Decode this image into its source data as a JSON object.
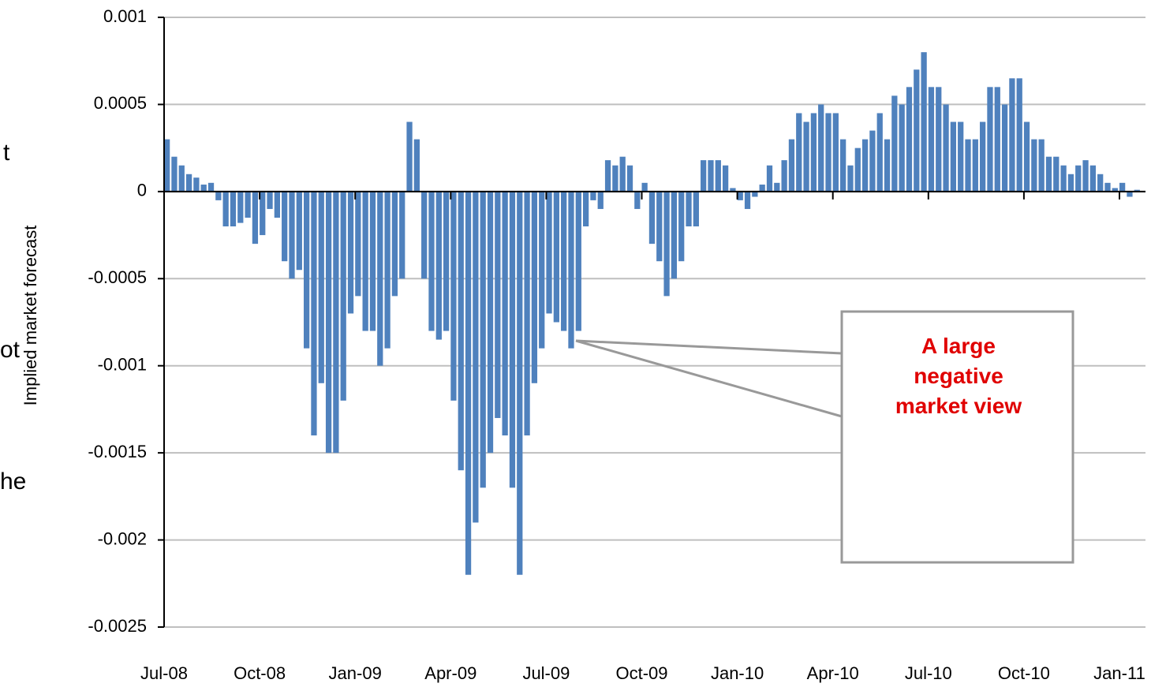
{
  "chart_data": {
    "type": "bar",
    "y_label": "Implied market forecast",
    "annotation": "A large negative market view",
    "left_text_fragments": [
      "t",
      "ot",
      "he"
    ],
    "color": "#4f81bd",
    "grid": true,
    "categories": [
      "Jul-08",
      null,
      null,
      null,
      null,
      null,
      null,
      null,
      null,
      null,
      null,
      null,
      null,
      "Oct-08",
      null,
      null,
      null,
      null,
      null,
      null,
      null,
      null,
      null,
      null,
      null,
      null,
      "Jan-09",
      null,
      null,
      null,
      null,
      null,
      null,
      null,
      null,
      null,
      null,
      null,
      null,
      "Apr-09",
      null,
      null,
      null,
      null,
      null,
      null,
      null,
      null,
      null,
      null,
      null,
      null,
      "Jul-09",
      null,
      null,
      null,
      null,
      null,
      null,
      null,
      null,
      null,
      null,
      null,
      null,
      "Oct-09",
      null,
      null,
      null,
      null,
      null,
      null,
      null,
      null,
      null,
      null,
      null,
      null,
      "Jan-10",
      null,
      null,
      null,
      null,
      null,
      null,
      null,
      null,
      null,
      null,
      null,
      null,
      "Apr-10",
      null,
      null,
      null,
      null,
      null,
      null,
      null,
      null,
      null,
      null,
      null,
      null,
      "Jul-10",
      null,
      null,
      null,
      null,
      null,
      null,
      null,
      null,
      null,
      null,
      null,
      null,
      "Oct-10",
      null,
      null,
      null,
      null,
      null,
      null,
      null,
      null,
      null,
      null,
      null,
      null,
      "Jan-11",
      null,
      null
    ],
    "values": [
      0.0003,
      0.0002,
      0.00015,
      0.0001,
      8e-05,
      4e-05,
      5e-05,
      -5e-05,
      -0.0002,
      -0.0002,
      -0.00018,
      -0.00015,
      -0.0003,
      -0.00025,
      -0.0001,
      -0.00015,
      -0.0004,
      -0.0005,
      -0.00045,
      -0.0009,
      -0.0014,
      -0.0011,
      -0.0015,
      -0.0015,
      -0.0012,
      -0.0007,
      -0.0006,
      -0.0008,
      -0.0008,
      -0.001,
      -0.0009,
      -0.0006,
      -0.0005,
      0.0004,
      0.0003,
      -0.0005,
      -0.0008,
      -0.00085,
      -0.0008,
      -0.0012,
      -0.0016,
      -0.0022,
      -0.0019,
      -0.0017,
      -0.0015,
      -0.0013,
      -0.0014,
      -0.0017,
      -0.0022,
      -0.0014,
      -0.0011,
      -0.0009,
      -0.0007,
      -0.00075,
      -0.0008,
      -0.0009,
      -0.0008,
      -0.0002,
      -5e-05,
      -0.0001,
      0.00018,
      0.00015,
      0.0002,
      0.00015,
      -0.0001,
      5e-05,
      -0.0003,
      -0.0004,
      -0.0006,
      -0.0005,
      -0.0004,
      -0.0002,
      -0.0002,
      0.00018,
      0.00018,
      0.00018,
      0.00015,
      2e-05,
      -5e-05,
      -0.0001,
      -3e-05,
      4e-05,
      0.00015,
      5e-05,
      0.00018,
      0.0003,
      0.00045,
      0.0004,
      0.00045,
      0.0005,
      0.00045,
      0.00045,
      0.0003,
      0.00015,
      0.00025,
      0.0003,
      0.00035,
      0.00045,
      0.0003,
      0.00055,
      0.0005,
      0.0006,
      0.0007,
      0.0008,
      0.0006,
      0.0006,
      0.0005,
      0.0004,
      0.0004,
      0.0003,
      0.0003,
      0.0004,
      0.0006,
      0.0006,
      0.0005,
      0.00065,
      0.00065,
      0.0004,
      0.0003,
      0.0003,
      0.0002,
      0.0002,
      0.00015,
      0.0001,
      0.00015,
      0.00018,
      0.00015,
      0.0001,
      5e-05,
      2e-05,
      5e-05,
      -3e-05,
      1e-05
    ],
    "ylim": [
      -0.0025,
      0.001
    ],
    "yticks": [
      0.001,
      0.0005,
      0,
      -0.0005,
      -0.001,
      -0.0015,
      -0.002,
      -0.0025
    ]
  }
}
